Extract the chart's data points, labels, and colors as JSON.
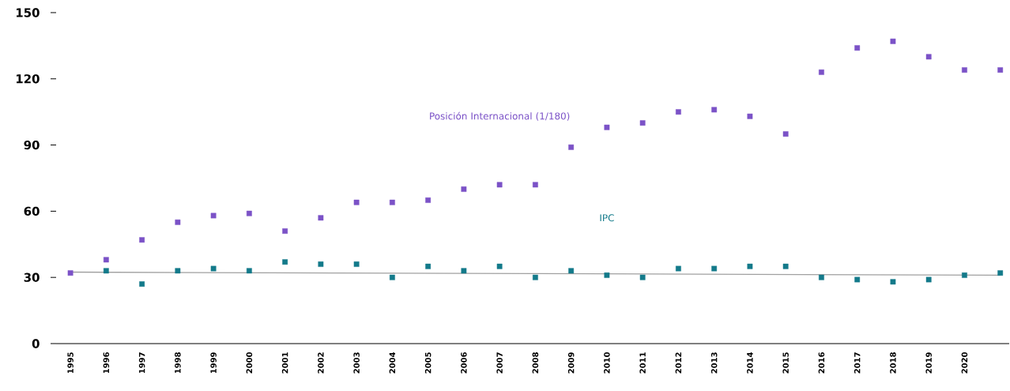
{
  "chart_data": {
    "type": "scatter",
    "categories": [
      "1995",
      "1996",
      "1997",
      "1998",
      "1999",
      "2000",
      "2001",
      "2002",
      "2003",
      "2004",
      "2005",
      "2006",
      "2007",
      "2008",
      "2009",
      "2010",
      "2011",
      "2012",
      "2013",
      "2014",
      "2015",
      "2016",
      "2017",
      "2018",
      "2019",
      "2020",
      null
    ],
    "series": [
      {
        "name": "Posición Internacional (1/180)",
        "color": "#7b52c7",
        "values": [
          32,
          38,
          47,
          55,
          58,
          59,
          51,
          57,
          64,
          64,
          65,
          70,
          72,
          72,
          89,
          98,
          100,
          105,
          106,
          103,
          95,
          123,
          134,
          137,
          130,
          124,
          124
        ]
      },
      {
        "name": "IPC",
        "color": "#137a8a",
        "values": [
          null,
          33,
          27,
          33,
          34,
          33,
          37,
          36,
          36,
          30,
          35,
          33,
          35,
          30,
          33,
          31,
          30,
          34,
          34,
          35,
          35,
          30,
          29,
          28,
          29,
          31,
          32
        ]
      },
      {
        "type": "line",
        "marker": "none",
        "color": "#a0a0a0",
        "values": [
          32.4,
          null,
          null,
          null,
          null,
          null,
          null,
          null,
          null,
          null,
          null,
          null,
          null,
          null,
          null,
          null,
          null,
          null,
          null,
          null,
          null,
          null,
          null,
          null,
          null,
          null,
          31
        ]
      }
    ],
    "ylim": [
      0,
      150
    ],
    "yticks": [
      0,
      30,
      60,
      90,
      120,
      150
    ],
    "marker": "square",
    "grid": false
  }
}
